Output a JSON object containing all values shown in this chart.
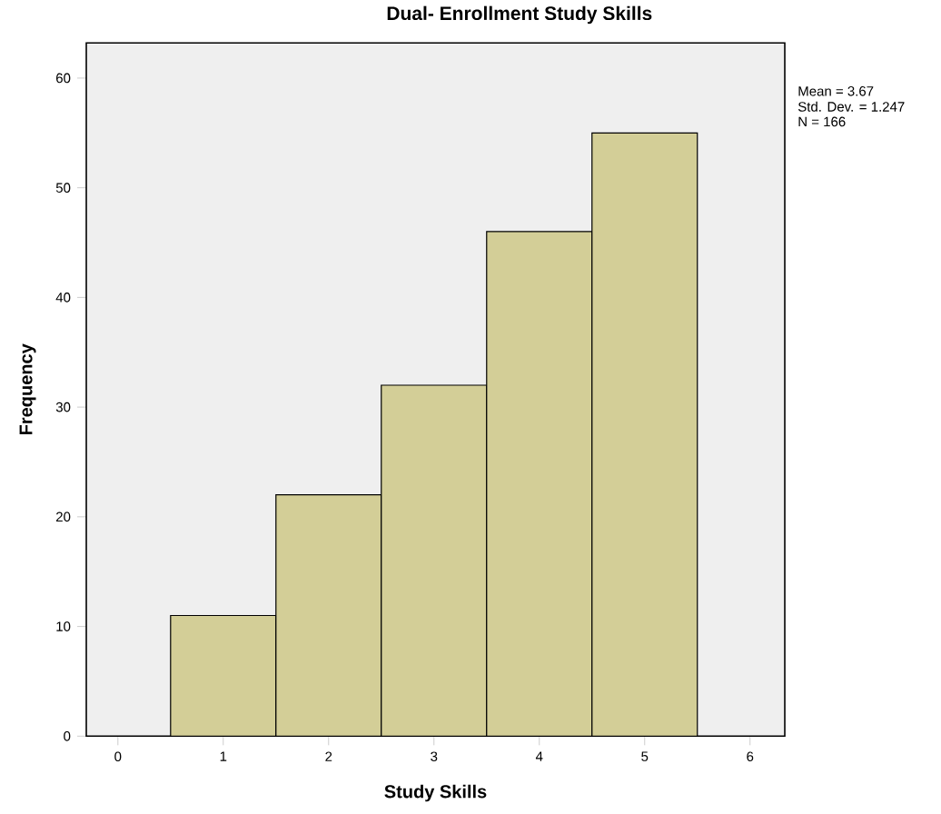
{
  "chart_data": {
    "type": "histogram",
    "title": "Dual- Enrollment Study Skills",
    "xlabel": "Study Skills",
    "ylabel": "Frequency",
    "bins": [
      0.5,
      1.5,
      2.5,
      3.5,
      4.5,
      5.5
    ],
    "values": [
      11,
      22,
      32,
      46,
      55
    ],
    "color": "#d3ce97",
    "xlim": [
      -0.3,
      6.33
    ],
    "ylim": [
      0,
      63.2
    ],
    "xticks": [
      0,
      1,
      2,
      3,
      4,
      5,
      6
    ],
    "yticks": [
      0,
      10,
      20,
      30,
      40,
      50,
      60
    ],
    "annotations": [
      "Mean = 3.67",
      "Std. Dev. = 1.247",
      "N = 166"
    ]
  }
}
